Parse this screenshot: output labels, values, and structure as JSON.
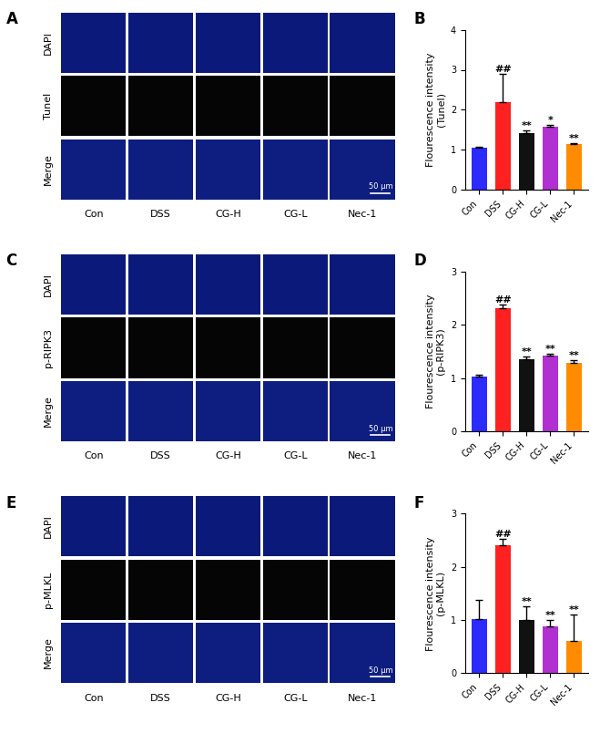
{
  "image_panels": [
    {
      "panel_label": "A",
      "rows": [
        "DAPI",
        "Tunel",
        "Merge"
      ],
      "columns": [
        "Con",
        "DSS",
        "CG-H",
        "CG-L",
        "Nec-1"
      ],
      "scale_bar": "50 μm"
    },
    {
      "panel_label": "C",
      "rows": [
        "DAPI",
        "p-RIPK3",
        "Merge"
      ],
      "columns": [
        "Con",
        "DSS",
        "CG-H",
        "CG-L",
        "Nec-1"
      ],
      "scale_bar": "50 μm"
    },
    {
      "panel_label": "E",
      "rows": [
        "DAPI",
        "p-MLKL",
        "Merge"
      ],
      "columns": [
        "Con",
        "DSS",
        "CG-H",
        "CG-L",
        "Nec-1"
      ],
      "scale_bar": "50 μm"
    }
  ],
  "chart_data": [
    {
      "type": "bar",
      "panel_label": "B",
      "y_label": "Flourescence intensity\n(Tunel)",
      "categories": [
        "Con",
        "DSS",
        "CG-H",
        "CG-L",
        "Nec-1"
      ],
      "values": [
        1.05,
        2.2,
        1.42,
        1.58,
        1.15
      ],
      "errors": [
        0.02,
        0.7,
        0.06,
        0.05,
        0.01
      ],
      "significance": [
        null,
        "##",
        "**",
        "*",
        "**"
      ],
      "colors": [
        "#2b2bff",
        "#ff2020",
        "#111111",
        "#b030d0",
        "#ff8c00"
      ],
      "ylim": [
        0,
        4
      ],
      "yticks": [
        0,
        1,
        2,
        3,
        4
      ]
    },
    {
      "type": "bar",
      "panel_label": "D",
      "y_label": "Flourescence intensity\n(p-RIPK3)",
      "categories": [
        "Con",
        "DSS",
        "CG-H",
        "CG-L",
        "Nec-1"
      ],
      "values": [
        1.03,
        2.32,
        1.35,
        1.43,
        1.28
      ],
      "errors": [
        0.03,
        0.07,
        0.06,
        0.02,
        0.06
      ],
      "significance": [
        null,
        "##",
        "**",
        "**",
        "**"
      ],
      "colors": [
        "#2b2bff",
        "#ff2020",
        "#111111",
        "#b030d0",
        "#ff8c00"
      ],
      "ylim": [
        0,
        3
      ],
      "yticks": [
        0,
        1,
        2,
        3
      ]
    },
    {
      "type": "bar",
      "panel_label": "F",
      "y_label": "Flourescence intensity\n(p-MLKL)",
      "categories": [
        "Con",
        "DSS",
        "CG-H",
        "CG-L",
        "Nec-1"
      ],
      "values": [
        1.02,
        2.4,
        1.0,
        0.88,
        0.6
      ],
      "errors": [
        0.35,
        0.12,
        0.25,
        0.12,
        0.5
      ],
      "significance": [
        null,
        "##",
        "**",
        "**",
        "**"
      ],
      "colors": [
        "#2b2bff",
        "#ff2020",
        "#111111",
        "#b030d0",
        "#ff8c00"
      ],
      "ylim": [
        0,
        3
      ],
      "yticks": [
        0,
        1,
        2,
        3
      ]
    }
  ]
}
